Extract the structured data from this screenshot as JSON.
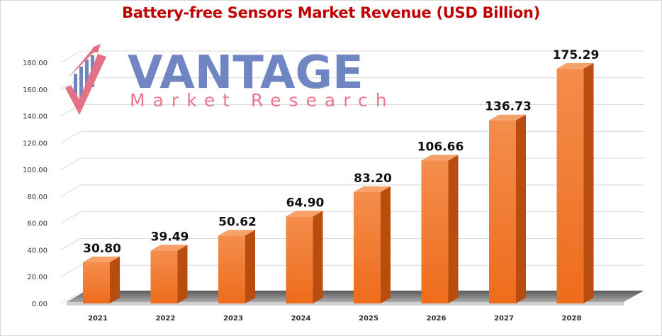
{
  "chart_data": {
    "type": "bar",
    "title": "Battery-free Sensors Market Revenue (USD Billion)",
    "xlabel": "",
    "ylabel": "",
    "categories": [
      "2021",
      "2022",
      "2023",
      "2024",
      "2025",
      "2026",
      "2027",
      "2028"
    ],
    "values": [
      30.8,
      39.49,
      50.62,
      64.9,
      83.2,
      106.66,
      136.73,
      175.29
    ],
    "value_labels": [
      "30.80",
      "39.49",
      "50.62",
      "64.90",
      "83.20",
      "106.66",
      "136.73",
      "175.29"
    ],
    "ylim": [
      0,
      180
    ],
    "yticks": [
      "0.00",
      "20.00",
      "40.00",
      "60.00",
      "80.00",
      "100.00",
      "120.00",
      "140.00",
      "160.00",
      "180.00"
    ],
    "grid": true,
    "legend": "none",
    "bar_color": "#f07a2c",
    "style": "3d-bar"
  },
  "watermark": {
    "main": "VANTAGE",
    "sub": "Market Research",
    "colors": {
      "main": "#5872b8",
      "sub": "#e7607a"
    }
  }
}
